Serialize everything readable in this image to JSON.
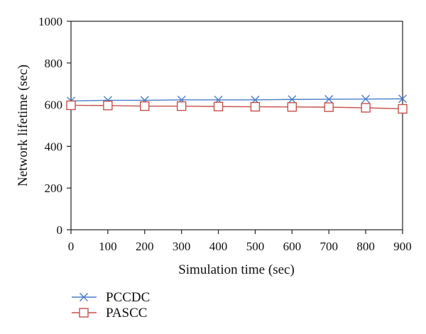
{
  "chart_data": {
    "type": "line",
    "xlabel": "Simulation time (sec)",
    "ylabel": "Network lifetime (sec)",
    "xlim": [
      0,
      900
    ],
    "ylim": [
      0,
      1000
    ],
    "x_ticks": [
      "0",
      "100",
      "200",
      "300",
      "400",
      "500",
      "600",
      "700",
      "800",
      "900"
    ],
    "y_ticks": [
      "0",
      "200",
      "400",
      "600",
      "800",
      "1000"
    ],
    "grid": false,
    "legend_position": "bottom-left",
    "x": [
      0,
      100,
      200,
      300,
      400,
      500,
      600,
      700,
      800,
      900
    ],
    "series": [
      {
        "name": "PCCDC",
        "marker": "x",
        "color": "#4a7ec8",
        "values": [
          618,
          621,
          621,
          623,
          623,
          623,
          625,
          626,
          627,
          628
        ]
      },
      {
        "name": "PASCC",
        "marker": "square",
        "color": "#c8504a",
        "values": [
          597,
          596,
          593,
          593,
          591,
          590,
          589,
          588,
          585,
          580
        ]
      }
    ]
  }
}
